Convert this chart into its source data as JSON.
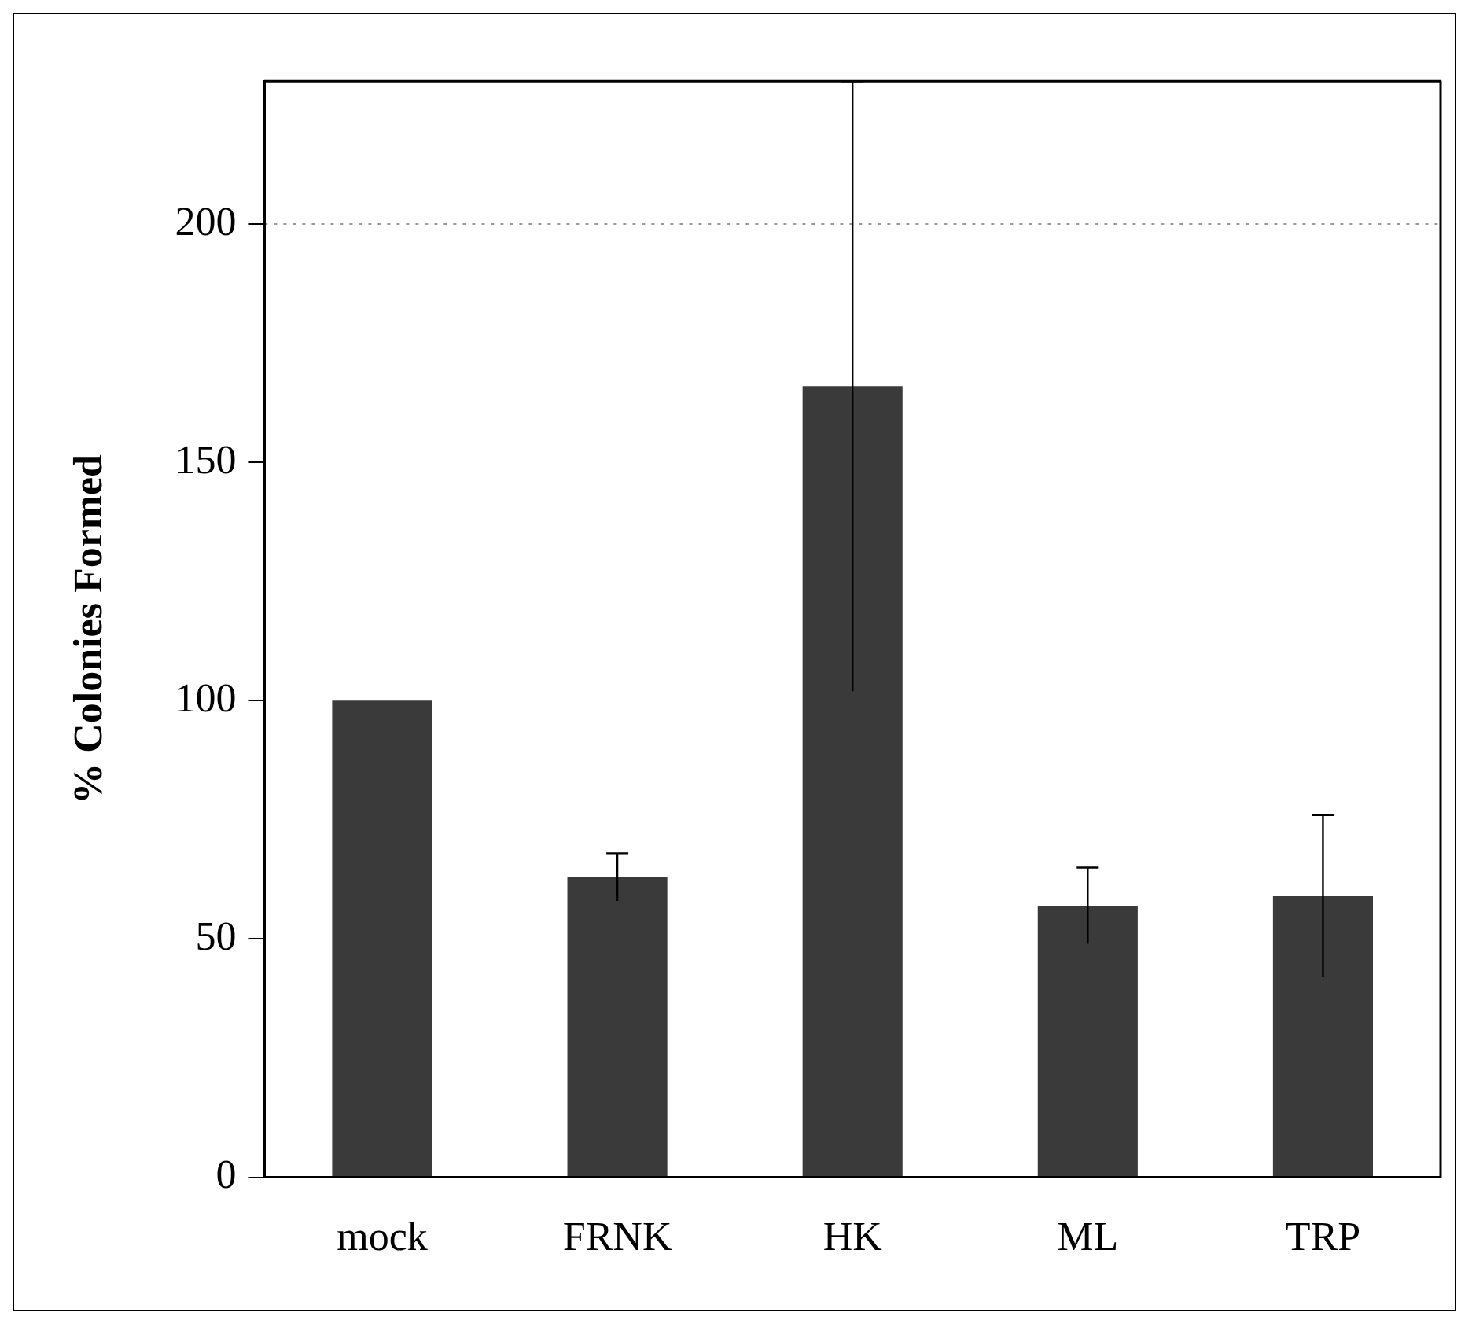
{
  "chart_data": {
    "type": "bar",
    "ylabel": "% Colonies Formed",
    "categories": [
      "mock",
      "FRNK",
      "HK",
      "ML",
      "TRP"
    ],
    "values": [
      100,
      63,
      166,
      57,
      59
    ],
    "errors": [
      null,
      5,
      64,
      8,
      17
    ],
    "color": "#3a3a3a",
    "ylim": [
      0,
      230
    ],
    "yticks": [
      0,
      50,
      100,
      150,
      200
    ],
    "ref_lines": [
      {
        "axis": "y",
        "value": 200,
        "line_style": "dotted",
        "color": "#999999"
      }
    ],
    "grid": false,
    "legend": false
  }
}
